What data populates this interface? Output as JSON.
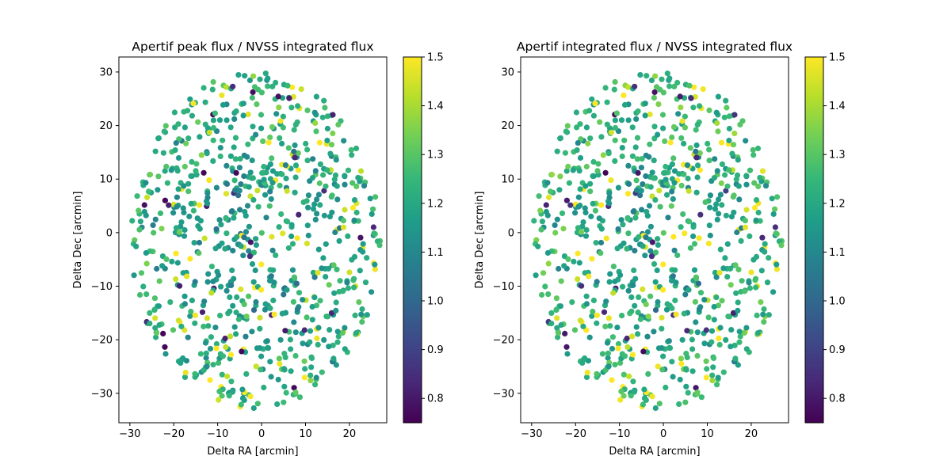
{
  "chart_data": [
    {
      "type": "scatter",
      "title": "Apertif peak flux / NVSS integrated flux",
      "xlabel": "Delta RA [arcmin]",
      "ylabel": "Delta Dec [arcmin]",
      "xlim": [
        -32.5,
        28.5
      ],
      "ylim": [
        -35.5,
        32.8
      ],
      "xticks": [
        -30,
        -20,
        -10,
        0,
        10,
        20
      ],
      "yticks": [
        -30,
        -20,
        -10,
        0,
        10,
        20,
        30
      ],
      "point_count": 820,
      "colorbar": {
        "colormap": "viridis",
        "range": [
          0.75,
          1.5
        ],
        "ticks": [
          "0.8",
          "0.9",
          "1.0",
          "1.1",
          "1.2",
          "1.3",
          "1.4",
          "1.5"
        ]
      },
      "grid": false,
      "seed": 11
    },
    {
      "type": "scatter",
      "title": "Apertif integrated flux / NVSS integrated flux",
      "xlabel": "Delta RA [arcmin]",
      "ylabel": "Delta Dec [arcmin]",
      "xlim": [
        -32.5,
        28.5
      ],
      "ylim": [
        -35.5,
        32.8
      ],
      "xticks": [
        -30,
        -20,
        -10,
        0,
        10,
        20
      ],
      "yticks": [
        -30,
        -20,
        -10,
        0,
        10,
        20,
        30
      ],
      "point_count": 820,
      "colorbar": {
        "colormap": "viridis",
        "range": [
          0.75,
          1.5
        ],
        "ticks": [
          "0.8",
          "0.9",
          "1.0",
          "1.1",
          "1.2",
          "1.3",
          "1.4",
          "1.5"
        ]
      },
      "grid": false,
      "seed": 11
    }
  ],
  "colors": {
    "viridis": [
      "#440154",
      "#482878",
      "#3e4989",
      "#31688e",
      "#26828e",
      "#1f9e89",
      "#35b779",
      "#6ece58",
      "#b5de2b",
      "#fde725"
    ]
  }
}
